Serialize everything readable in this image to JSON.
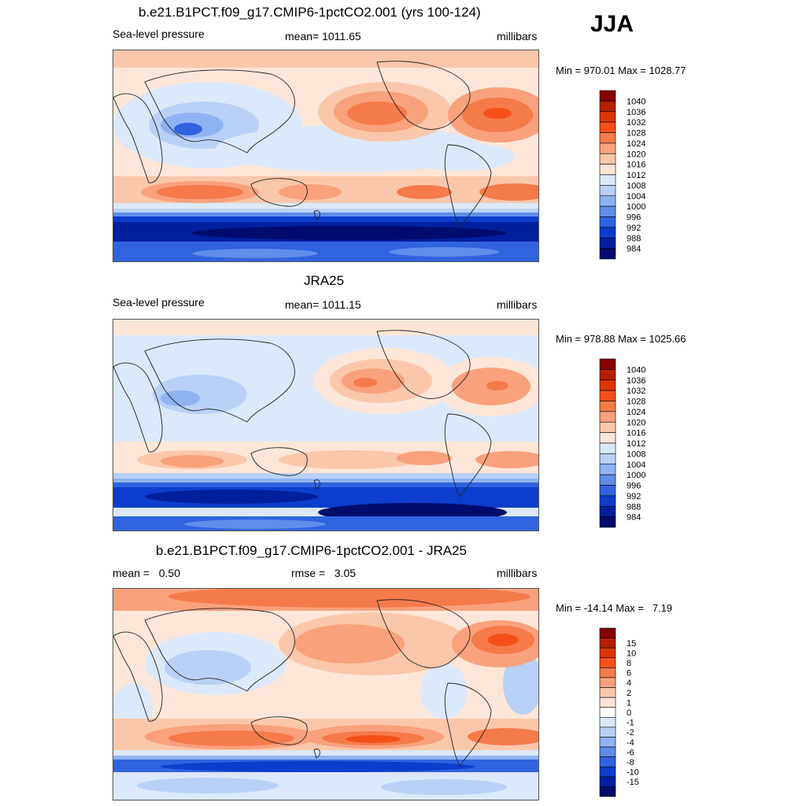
{
  "season": "JJA",
  "panels": [
    {
      "title": "b.e21.B1PCT.f09_g17.CMIP6-1pctCO2.001 (yrs 100-124)",
      "left_label": "Sea-level pressure",
      "center_label": "mean= 1011.65",
      "right_label": "millibars",
      "minmax": "Min = 970.01 Max = 1028.77",
      "colorbar": {
        "labels": [
          "1040",
          "1036",
          "1032",
          "1028",
          "1024",
          "1020",
          "1016",
          "1012",
          "1008",
          "1004",
          "1000",
          "996",
          "992",
          "988",
          "984"
        ],
        "colors": [
          "#870000",
          "#b51f00",
          "#db3500",
          "#f4511a",
          "#f57b4a",
          "#f9a17c",
          "#fbc7aa",
          "#fde6d7",
          "#dbe8fa",
          "#b8d1f7",
          "#8fb3f2",
          "#5f8de9",
          "#3163e0",
          "#0d3dcc",
          "#02209e",
          "#000d6e"
        ]
      }
    },
    {
      "title": "JRA25",
      "left_label": "Sea-level pressure",
      "center_label": "mean= 1011.15",
      "right_label": "millibars",
      "minmax": "Min = 978.88 Max = 1025.66",
      "colorbar": {
        "labels": [
          "1040",
          "1036",
          "1032",
          "1028",
          "1024",
          "1020",
          "1016",
          "1012",
          "1008",
          "1004",
          "1000",
          "996",
          "992",
          "988",
          "984"
        ],
        "colors": [
          "#870000",
          "#b51f00",
          "#db3500",
          "#f4511a",
          "#f57b4a",
          "#f9a17c",
          "#fbc7aa",
          "#fde6d7",
          "#dbe8fa",
          "#b8d1f7",
          "#8fb3f2",
          "#5f8de9",
          "#3163e0",
          "#0d3dcc",
          "#02209e",
          "#000d6e"
        ]
      }
    },
    {
      "title": "b.e21.B1PCT.f09_g17.CMIP6-1pctCO2.001 - JRA25",
      "left_label": "mean =   0.50",
      "center_label": "rmse =   3.05",
      "right_label": "millibars",
      "minmax": "Min = -14.14 Max =   7.19",
      "colorbar": {
        "labels": [
          "15",
          "10",
          "8",
          "6",
          "4",
          "2",
          "1",
          "0",
          "-1",
          "-2",
          "-4",
          "-6",
          "-8",
          "-10",
          "-15"
        ],
        "colors": [
          "#870000",
          "#b51f00",
          "#db3500",
          "#f4511a",
          "#f57b4a",
          "#f9a17c",
          "#fbc7aa",
          "#fde6d7",
          "#ffffff",
          "#dbe8fa",
          "#b8d1f7",
          "#8fb3f2",
          "#5f8de9",
          "#3163e0",
          "#0d3dcc",
          "#02209e",
          "#000d6e"
        ]
      }
    }
  ]
}
